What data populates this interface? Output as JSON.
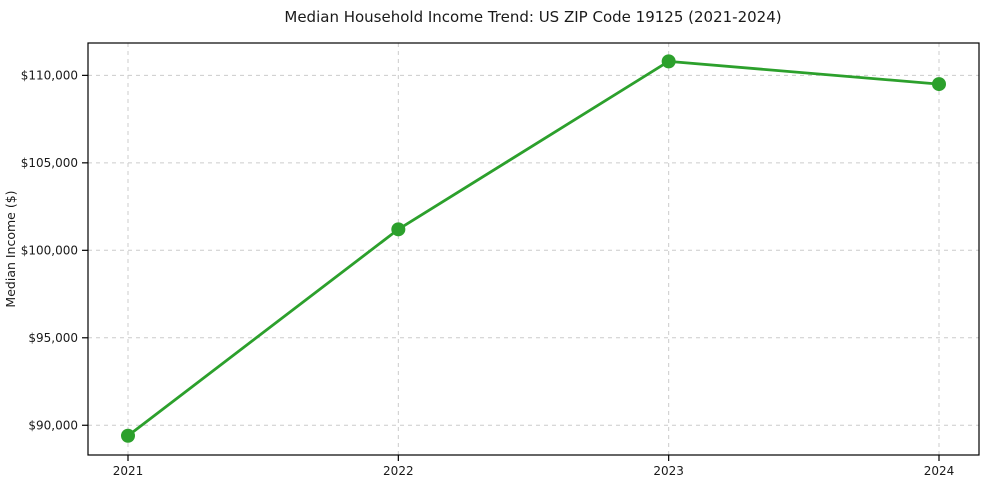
{
  "chart_data": {
    "type": "line",
    "title": "Median Household Income Trend: US ZIP Code 19125 (2021-2024)",
    "xlabel": "",
    "ylabel": "Median Income ($)",
    "categories": [
      "2021",
      "2022",
      "2023",
      "2024"
    ],
    "series": [
      {
        "name": "Median Household Income",
        "values": [
          89400,
          101200,
          110800,
          109500
        ]
      }
    ],
    "ytick_values": [
      90000,
      95000,
      100000,
      105000,
      110000
    ],
    "ytick_labels": [
      "$90,000",
      "$95,000",
      "$100,000",
      "$105,000",
      "$110,000"
    ],
    "ylim": [
      88300,
      111850
    ],
    "grid": true,
    "legend": "none",
    "colors": {
      "line": "#2ca02c",
      "marker": "#2ca02c",
      "grid": "#cccccc",
      "spine": "#000000",
      "text": "#1a1a1a",
      "background": "#ffffff"
    },
    "style": {
      "line_width": 2.8,
      "marker_radius": 7,
      "grid_dash": "4 4"
    }
  }
}
